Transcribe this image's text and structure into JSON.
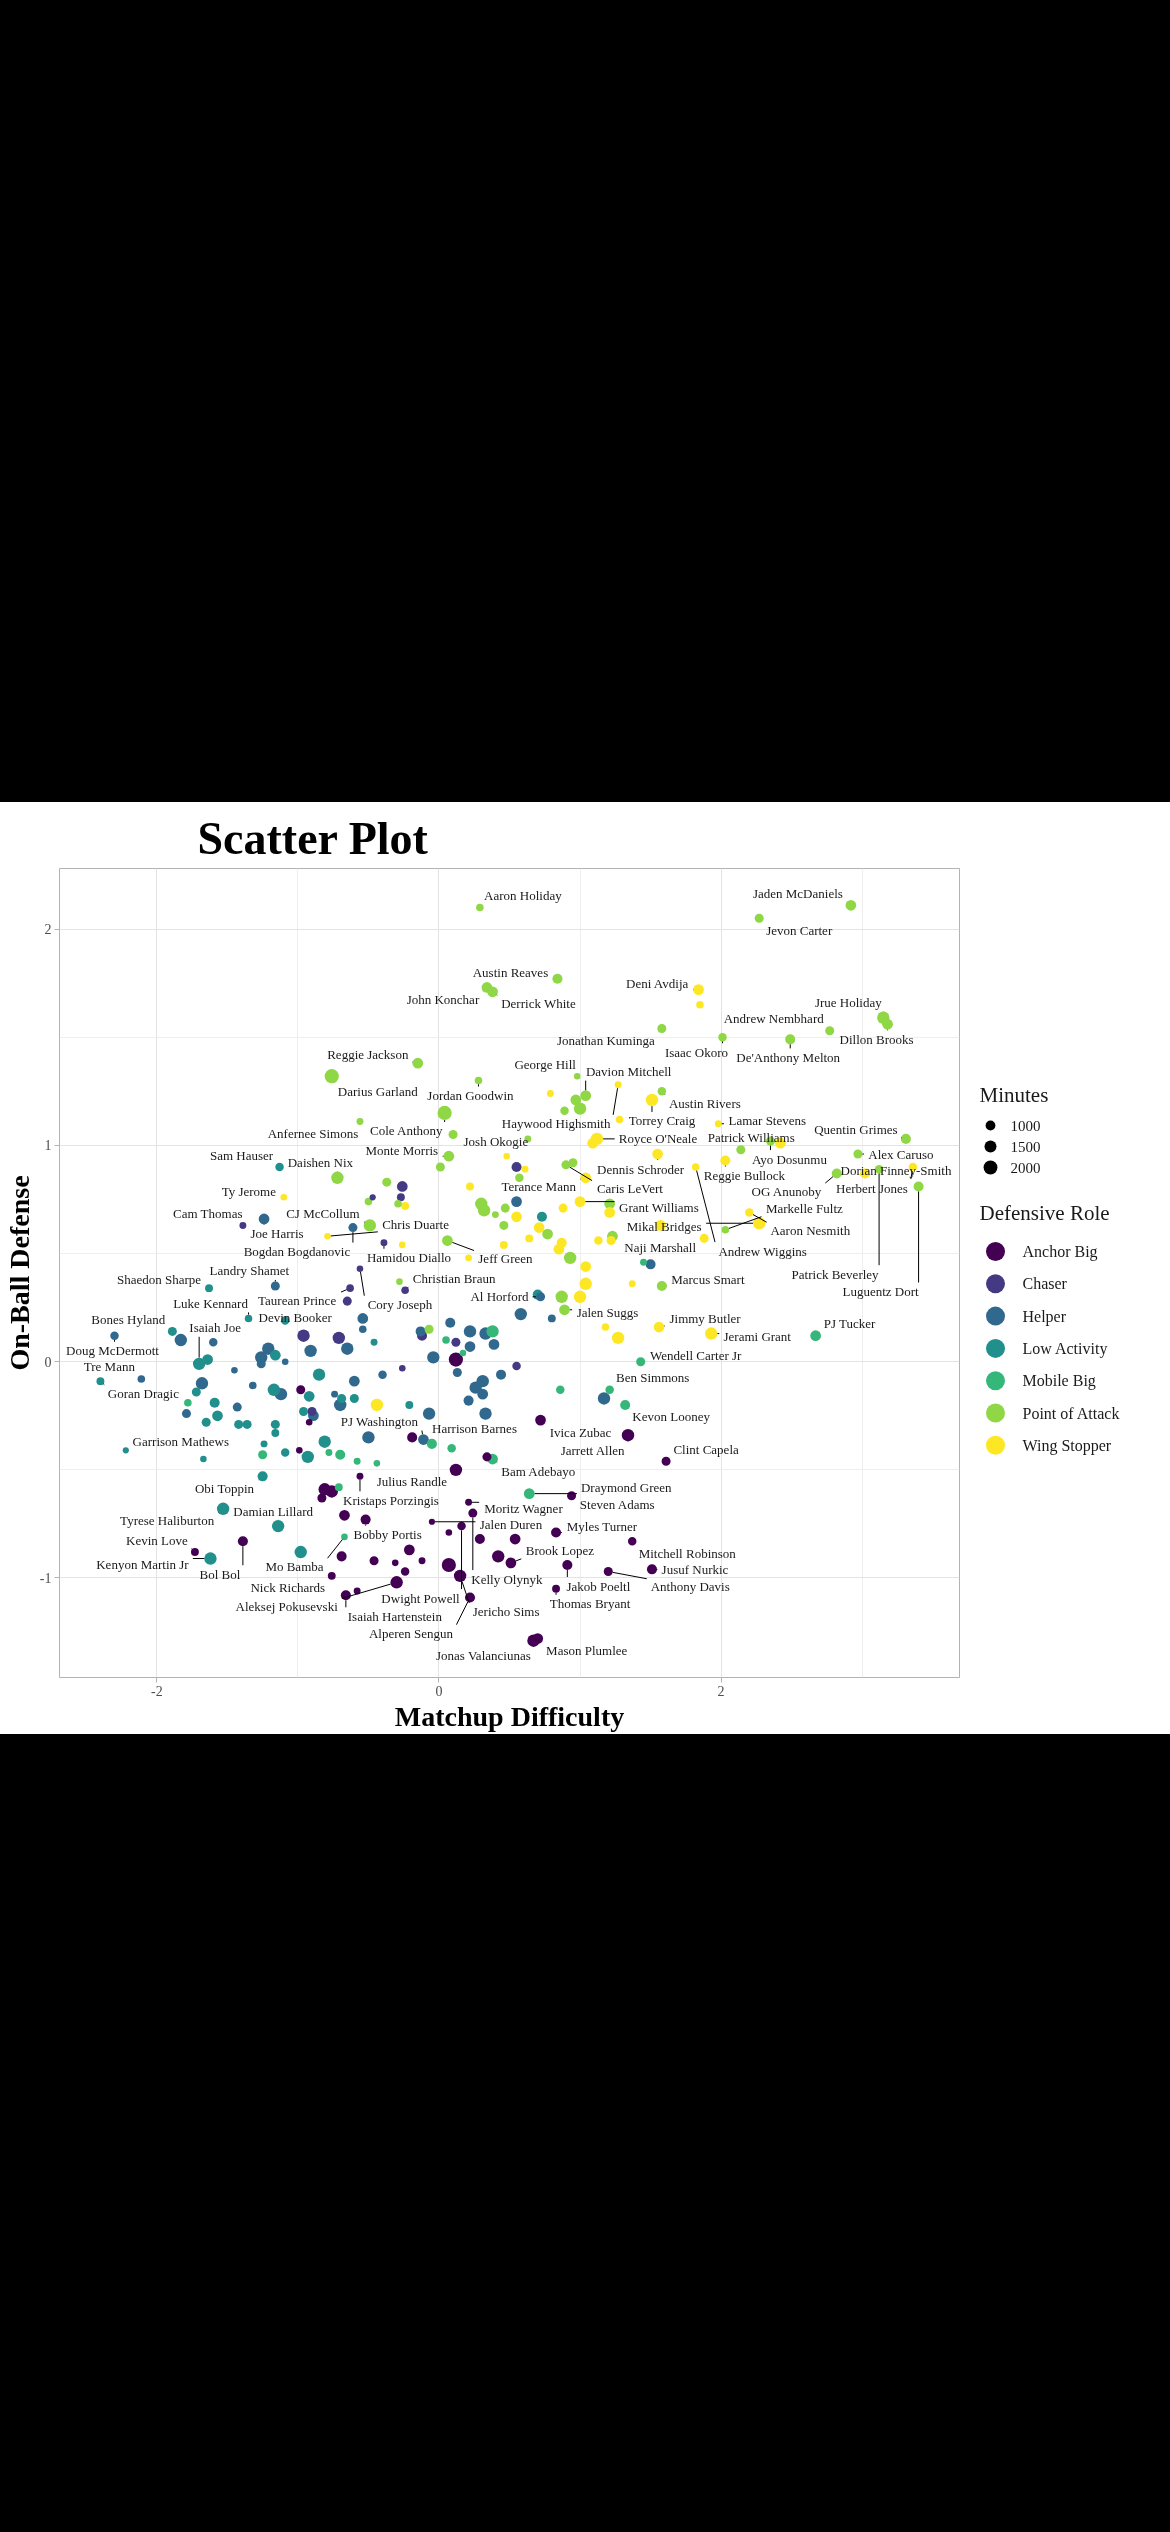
{
  "chart_data": {
    "type": "bubble",
    "title": "Scatter Plot",
    "xlabel": "Matchup Difficulty",
    "ylabel": "On-Ball Defense",
    "legend_title": "Defensive Role",
    "xlim": [
      -2.69,
      3.69
    ],
    "ylim": [
      -1.46,
      2.28
    ],
    "xticks": [
      -2,
      0,
      2
    ],
    "yticks": [
      -1,
      0,
      1,
      2
    ],
    "grid": true,
    "legend": "right",
    "marker": "circle",
    "size_legend": [
      1000,
      1500,
      2000
    ],
    "series": [
      {
        "name": "Anchor Big",
        "color": "#440154",
        "x": [
          -0.98,
          -0.92,
          -0.99,
          -0.56,
          -0.81,
          -0.76,
          -0.83,
          -0.67,
          -0.52,
          -1.39,
          -1.73,
          -0.69,
          -0.46,
          -0.76,
          -0.66,
          -0.58,
          0.12,
          0.72,
          -0.19,
          0.34,
          0.12,
          0.94,
          0.21,
          0.24,
          -0.05,
          0.16,
          0.07,
          0.29,
          0.54,
          0.83,
          1.37,
          -0.21,
          -0.31,
          -0.12,
          -0.24,
          -0.3,
          0.07,
          0.15,
          0.42,
          0.51,
          0.91,
          1.2,
          1.51,
          0.83,
          0.22,
          0.67,
          0.7,
          1.34,
          1.61
        ],
        "values": [
          -0.13,
          -0.28,
          -0.41,
          -0.53,
          -0.59,
          -0.6,
          -0.63,
          -0.71,
          -0.73,
          -0.83,
          -0.88,
          -0.9,
          -0.92,
          -0.99,
          -1.08,
          -1.06,
          0.01,
          -0.27,
          -0.35,
          -0.44,
          -0.5,
          -0.62,
          -0.65,
          -0.7,
          -0.74,
          -0.76,
          -0.79,
          -0.82,
          -0.82,
          -0.79,
          -0.83,
          -0.87,
          -0.93,
          -0.92,
          -0.97,
          -1.02,
          -0.94,
          -0.99,
          -0.9,
          -0.93,
          -0.94,
          -0.97,
          -0.96,
          -1.05,
          -1.09,
          -1.29,
          -1.28,
          -0.34,
          -0.46
        ],
        "sizes": [
          850,
          450,
          450,
          500,
          1600,
          1600,
          850,
          1200,
          1050,
          1050,
          650,
          1050,
          850,
          650,
          1050,
          500,
          2100,
          1200,
          1050,
          850,
          1600,
          850,
          500,
          850,
          400,
          750,
          450,
          1050,
          1200,
          1050,
          750,
          1200,
          450,
          500,
          750,
          1600,
          2100,
          1600,
          1600,
          1200,
          1050,
          850,
          1050,
          650,
          1050,
          1600,
          1200,
          1600,
          850
        ]
      },
      {
        "name": "Chaser",
        "color": "#443a83",
        "x": [
          -0.47,
          -1.39,
          0.55,
          -0.26,
          -0.27,
          -0.39,
          -0.56,
          -0.24,
          -0.63,
          -0.65,
          -0.96,
          -0.71,
          -0.9,
          -0.12,
          0.12,
          -0.26,
          0.55
        ],
        "values": [
          0.76,
          0.63,
          0.9,
          0.81,
          0.76,
          0.55,
          0.43,
          0.33,
          0.34,
          0.28,
          0.12,
          0.11,
          -0.23,
          0.12,
          0.09,
          -0.03,
          -0.02
        ],
        "sizes": [
          400,
          500,
          1050,
          1200,
          650,
          500,
          450,
          600,
          600,
          850,
          1600,
          1600,
          850,
          1050,
          850,
          450,
          750
        ]
      },
      {
        "name": "Helper",
        "color": "#31688e",
        "x": [
          -1.24,
          -0.61,
          0.55,
          1.5,
          -2.3,
          -1.83,
          -1.6,
          -1.16,
          -0.54,
          -0.54,
          -0.91,
          -0.65,
          -1.21,
          -1.26,
          -1.26,
          -1.09,
          -2.11,
          -1.68,
          -1.45,
          -1.32,
          -1.12,
          -0.74,
          -0.7,
          -0.6,
          -1.79,
          -1.43,
          -0.89,
          -0.5,
          -0.13,
          0.08,
          0.22,
          0.22,
          0.33,
          0.39,
          -0.04,
          0.13,
          -0.4,
          0.44,
          0.31,
          0.26,
          0.31,
          0.21,
          0.33,
          -0.07,
          -0.11,
          0.72,
          0.58,
          0.8,
          1.17
        ],
        "values": [
          0.66,
          0.62,
          0.74,
          0.45,
          0.12,
          0.1,
          0.09,
          0.35,
          0.2,
          0.15,
          0.05,
          0.06,
          0.06,
          0.02,
          -0.01,
          0.0,
          -0.08,
          -0.1,
          -0.04,
          -0.11,
          -0.15,
          -0.15,
          -0.2,
          -0.09,
          -0.24,
          -0.21,
          -0.25,
          -0.35,
          0.14,
          0.18,
          0.14,
          0.07,
          0.13,
          0.08,
          0.02,
          -0.05,
          -0.06,
          -0.06,
          -0.09,
          -0.12,
          -0.15,
          -0.18,
          -0.24,
          -0.24,
          -0.36,
          0.3,
          0.22,
          0.2,
          -0.17
        ],
        "sizes": [
          1200,
          850,
          1200,
          1050,
          750,
          1600,
          750,
          850,
          1200,
          600,
          1600,
          1600,
          1600,
          1600,
          850,
          450,
          600,
          1600,
          450,
          600,
          1600,
          500,
          1600,
          1200,
          850,
          850,
          1200,
          1600,
          1050,
          1050,
          1600,
          1200,
          1600,
          1200,
          1600,
          850,
          750,
          1050,
          1600,
          1600,
          1200,
          1050,
          1600,
          1600,
          1200,
          850,
          1600,
          650,
          1600
        ]
      },
      {
        "name": "Low Activity",
        "color": "#21908c",
        "x": [
          -1.13,
          0.73,
          -1.63,
          -1.89,
          -1.35,
          -1.09,
          -0.46,
          -1.16,
          -1.7,
          -1.64,
          -2.4,
          -1.72,
          -1.17,
          -0.92,
          -0.85,
          -0.69,
          -0.6,
          -1.59,
          -1.57,
          -1.65,
          -1.42,
          -1.36,
          -1.16,
          -1.16,
          -0.96,
          -2.22,
          -1.67,
          -1.24,
          -1.09,
          -0.93,
          -0.81,
          -1.25,
          -1.53,
          -1.14,
          -1.62,
          -0.98,
          -0.21,
          0.7
        ],
        "values": [
          0.9,
          0.67,
          0.34,
          0.14,
          0.2,
          0.19,
          0.09,
          0.03,
          -0.01,
          0.01,
          -0.09,
          -0.14,
          -0.13,
          -0.16,
          -0.06,
          -0.17,
          -0.17,
          -0.19,
          -0.25,
          -0.28,
          -0.29,
          -0.29,
          -0.29,
          -0.33,
          -0.23,
          -0.41,
          -0.45,
          -0.38,
          -0.42,
          -0.44,
          -0.37,
          -0.53,
          -0.68,
          -0.76,
          -0.91,
          -0.88,
          -0.2,
          0.31
        ],
        "sizes": [
          750,
          1050,
          650,
          850,
          600,
          750,
          500,
          1200,
          1600,
          1200,
          650,
          850,
          1600,
          1200,
          1600,
          850,
          850,
          1050,
          1200,
          850,
          850,
          850,
          850,
          650,
          850,
          400,
          450,
          500,
          750,
          1600,
          1600,
          1050,
          1600,
          1600,
          1600,
          1600,
          650,
          1050
        ]
      },
      {
        "name": "Mobile Big",
        "color": "#35b779",
        "x": [
          1.45,
          -1.78,
          -1.25,
          -0.78,
          -0.7,
          -0.58,
          -0.71,
          -0.67,
          0.05,
          0.38,
          0.17,
          -0.05,
          0.09,
          -0.44,
          0.38,
          0.64,
          0.86,
          1.21,
          1.32,
          1.43,
          2.67
        ],
        "values": [
          0.46,
          -0.19,
          -0.43,
          -0.42,
          -0.43,
          -0.46,
          -0.58,
          -0.81,
          0.1,
          0.14,
          0.04,
          -0.38,
          -0.4,
          -0.47,
          -0.45,
          -0.61,
          -0.13,
          -0.13,
          -0.2,
          0.0,
          0.12
        ],
        "sizes": [
          500,
          600,
          850,
          500,
          1050,
          500,
          650,
          450,
          600,
          1600,
          450,
          1050,
          750,
          450,
          1200,
          1200,
          750,
          750,
          1050,
          850,
          1200
        ]
      },
      {
        "name": "Point of Attack",
        "color": "#8fd744",
        "x": [
          -0.76,
          -0.56,
          -0.72,
          -0.5,
          -0.49,
          0.29,
          0.34,
          0.38,
          0.84,
          1.58,
          -0.15,
          0.28,
          0.98,
          0.97,
          1.04,
          1.0,
          0.89,
          1.58,
          0.04,
          0.1,
          0.07,
          0.01,
          0.63,
          0.57,
          0.9,
          0.95,
          -0.37,
          -0.29,
          0.3,
          0.32,
          0.4,
          0.47,
          0.46,
          0.77,
          1.21,
          1.23,
          0.06,
          0.93,
          2.92,
          2.27,
          2.01,
          2.49,
          2.77,
          3.15,
          3.18,
          2.14,
          2.35,
          2.97,
          3.31,
          2.82,
          3.12,
          3.4,
          2.03,
          -0.28,
          -0.07,
          0.87,
          0.89,
          1.58
        ],
        "values": [
          1.32,
          1.11,
          0.85,
          0.74,
          0.63,
          2.1,
          1.73,
          1.71,
          1.77,
          1.54,
          1.38,
          1.3,
          1.32,
          1.21,
          1.23,
          1.17,
          1.16,
          1.25,
          1.15,
          1.05,
          0.95,
          0.9,
          1.03,
          0.85,
          0.91,
          0.92,
          0.83,
          0.73,
          0.73,
          0.7,
          0.68,
          0.71,
          0.63,
          0.59,
          0.73,
          0.58,
          0.56,
          0.48,
          2.11,
          2.05,
          1.5,
          1.49,
          1.53,
          1.59,
          1.56,
          0.98,
          1.02,
          0.96,
          1.03,
          0.87,
          0.89,
          0.81,
          0.61,
          0.37,
          0.15,
          0.3,
          0.24,
          0.35
        ],
        "sizes": [
          2100,
          500,
          1600,
          600,
          1600,
          600,
          1200,
          1200,
          1050,
          850,
          1200,
          600,
          450,
          1200,
          1200,
          1600,
          750,
          750,
          2100,
          850,
          1200,
          850,
          500,
          750,
          850,
          850,
          850,
          600,
          1600,
          1600,
          500,
          850,
          850,
          1200,
          1200,
          1200,
          1200,
          1600,
          1200,
          850,
          750,
          1050,
          850,
          1600,
          1200,
          850,
          850,
          850,
          1050,
          1050,
          750,
          1050,
          600,
          450,
          850,
          1600,
          1200,
          1050
        ]
      },
      {
        "name": "Wing Stopper",
        "color": "#fde725",
        "x": [
          -1.1,
          -0.79,
          1.27,
          0.79,
          1.51,
          1.28,
          1.12,
          1.09,
          0.48,
          0.61,
          1.04,
          1.55,
          -0.24,
          0.22,
          0.55,
          0.71,
          0.88,
          1.0,
          1.21,
          1.57,
          1.22,
          1.13,
          0.64,
          0.46,
          0.21,
          -0.26,
          0.87,
          0.85,
          1.04,
          1.04,
          1.0,
          1.18,
          1.27,
          1.37,
          1.56,
          1.84,
          1.85,
          1.98,
          2.03,
          1.82,
          2.42,
          3.02,
          3.36,
          2.2,
          2.27,
          1.88,
          1.93,
          -0.44
        ],
        "values": [
          0.76,
          0.58,
          1.28,
          1.24,
          1.21,
          1.12,
          1.03,
          1.01,
          0.95,
          0.89,
          0.85,
          0.96,
          0.72,
          0.81,
          0.67,
          0.62,
          0.71,
          0.74,
          0.69,
          0.63,
          0.56,
          0.56,
          0.57,
          0.54,
          0.48,
          0.54,
          0.55,
          0.52,
          0.44,
          0.36,
          0.3,
          0.16,
          0.11,
          0.36,
          0.16,
          1.72,
          1.65,
          1.1,
          0.93,
          0.9,
          1.01,
          0.87,
          0.9,
          0.69,
          0.64,
          0.57,
          0.13,
          -0.2
        ],
        "sizes": [
          450,
          450,
          500,
          500,
          1600,
          600,
          1600,
          1200,
          450,
          500,
          1200,
          1200,
          650,
          650,
          1200,
          1200,
          850,
          1200,
          1200,
          1200,
          850,
          750,
          650,
          650,
          500,
          450,
          1050,
          1200,
          1200,
          1600,
          1600,
          600,
          1600,
          500,
          1200,
          1200,
          600,
          500,
          1050,
          600,
          1200,
          1050,
          750,
          750,
          1600,
          850,
          1600,
          1600
        ]
      }
    ],
    "annotations": [
      "Minutes",
      {
        "text": "Aaron Holiday",
        "x": 0.29,
        "y": 2.1
      },
      {
        "text": "Jaden McDaniels",
        "x": 2.92,
        "y": 2.11
      },
      {
        "text": "Jevon Carter",
        "x": 2.27,
        "y": 2.05
      },
      {
        "text": "Austin Reaves",
        "x": 0.84,
        "y": 1.77
      },
      {
        "text": "John Konchar",
        "x": 0.34,
        "y": 1.73
      },
      {
        "text": "Derrick White",
        "x": 0.38,
        "y": 1.71
      },
      {
        "text": "Deni Avdija",
        "x": 1.84,
        "y": 1.72
      },
      {
        "text": "Jrue Holiday",
        "x": 3.15,
        "y": 1.59
      },
      {
        "text": "Jonathan Kuminga",
        "x": 1.58,
        "y": 1.54
      },
      {
        "text": "Andrew Nembhard",
        "x": 2.77,
        "y": 1.53
      },
      {
        "text": "Dillon Brooks",
        "x": 3.18,
        "y": 1.56
      },
      {
        "text": "Isaac Okoro",
        "x": 2.01,
        "y": 1.5
      },
      {
        "text": "De'Anthony Melton",
        "x": 2.49,
        "y": 1.49
      },
      {
        "text": "Davion Mitchell",
        "x": 1.04,
        "y": 1.23
      },
      {
        "text": "Reggie Jackson",
        "x": -0.15,
        "y": 1.38
      },
      {
        "text": "George Hill",
        "x": 0.98,
        "y": 1.32
      },
      {
        "text": "Haywood Highsmith",
        "x": 1.27,
        "y": 1.28
      },
      {
        "text": "Darius Garland",
        "x": -0.76,
        "y": 1.32
      },
      {
        "text": "Austin Rivers",
        "x": 1.58,
        "y": 1.25
      },
      {
        "text": "Jordan Goodwin",
        "x": 0.28,
        "y": 1.3
      },
      {
        "text": "Torrey Craig",
        "x": 1.51,
        "y": 1.21
      },
      {
        "text": "Lamar Stevens",
        "x": 1.98,
        "y": 1.1
      },
      {
        "text": "Anfernee Simons",
        "x": -0.56,
        "y": 1.11
      },
      {
        "text": "Ayo Dosunmu",
        "x": 2.35,
        "y": 1.02
      },
      {
        "text": "Quentin Grimes",
        "x": 3.31,
        "y": 1.03
      },
      {
        "text": "Cole Anthony",
        "x": 0.04,
        "y": 1.15
      },
      {
        "text": "Josh Okogie",
        "x": 0.63,
        "y": 1.03
      },
      {
        "text": "Royce O'Neale",
        "x": 1.12,
        "y": 1.03
      },
      {
        "text": "Dennis Schroder",
        "x": 1.55,
        "y": 0.96
      },
      {
        "text": "Daishen Nix",
        "x": -0.72,
        "y": 0.85
      },
      {
        "text": "Monte Morris",
        "x": 0.07,
        "y": 0.95
      },
      {
        "text": "Caris LeVert",
        "x": 0.9,
        "y": 0.91
      },
      {
        "text": "Alex Caruso",
        "x": 2.97,
        "y": 0.96
      },
      {
        "text": "Sam Hauser",
        "x": -1.13,
        "y": 0.9
      },
      {
        "text": "Terance Mann",
        "x": 1.04,
        "y": 0.85
      },
      {
        "text": "Reggie Bullock",
        "x": 2.03,
        "y": 0.93
      },
      {
        "text": "Patrick Williams",
        "x": 2.42,
        "y": 1.01
      },
      {
        "text": "Herbert Jones",
        "x": 3.36,
        "y": 0.9
      },
      {
        "text": "Ty Jerome",
        "x": -1.1,
        "y": 0.76
      },
      {
        "text": "Grant Williams",
        "x": 1.0,
        "y": 0.74
      },
      {
        "text": "Andrew Wiggins",
        "x": 1.82,
        "y": 0.9
      },
      {
        "text": "OG Anunoby",
        "x": 2.82,
        "y": 0.87
      },
      {
        "text": "Joe Harris",
        "x": -1.24,
        "y": 0.66
      },
      {
        "text": "Bogdan Bogdanovic",
        "x": -0.61,
        "y": 0.62
      },
      {
        "text": "CJ McCollum",
        "x": -0.49,
        "y": 0.63
      },
      {
        "text": "Markelle Fultz",
        "x": 2.03,
        "y": 0.61
      },
      {
        "text": "Aaron Nesmith",
        "x": 2.2,
        "y": 0.69
      },
      {
        "text": "Patrick Beverley",
        "x": 3.12,
        "y": 0.89
      },
      {
        "text": "Cam Thomas",
        "x": -1.39,
        "y": 0.63
      },
      {
        "text": "Chris Duarte",
        "x": -0.79,
        "y": 0.58
      },
      {
        "text": "Hamidou Diallo",
        "x": -0.39,
        "y": 0.55
      },
      {
        "text": "Dorian Finney-Smith",
        "x": 3.02,
        "y": 0.87
      },
      {
        "text": "Luguentz Dort",
        "x": 3.4,
        "y": 0.81
      },
      {
        "text": "Jeff Green",
        "x": 0.06,
        "y": 0.56
      },
      {
        "text": "Naji Marshall",
        "x": 1.88,
        "y": 0.57
      },
      {
        "text": "Mikal Bridges",
        "x": 2.27,
        "y": 0.64
      },
      {
        "text": "Shaedon Sharpe",
        "x": -1.63,
        "y": 0.34
      },
      {
        "text": "Landry Shamet",
        "x": -1.16,
        "y": 0.35
      },
      {
        "text": "Cory Joseph",
        "x": -0.56,
        "y": 0.43
      },
      {
        "text": "Bones Hyland",
        "x": -1.89,
        "y": 0.14
      },
      {
        "text": "Taurean Prince",
        "x": -0.63,
        "y": 0.34
      },
      {
        "text": "Marcus Smart",
        "x": 1.58,
        "y": 0.35
      },
      {
        "text": "Christian Braun",
        "x": -0.24,
        "y": 0.33
      },
      {
        "text": "Al Horford",
        "x": 0.72,
        "y": 0.3
      },
      {
        "text": "Luke Kennard",
        "x": -1.35,
        "y": 0.2
      },
      {
        "text": "Devin Booker",
        "x": -1.09,
        "y": 0.19
      },
      {
        "text": "Jimmy Butler",
        "x": 1.56,
        "y": 0.16
      },
      {
        "text": "Doug McDermott",
        "x": -2.3,
        "y": 0.12
      },
      {
        "text": "Jalen Suggs",
        "x": 0.89,
        "y": 0.24
      },
      {
        "text": "PJ Tucker",
        "x": 2.67,
        "y": 0.12
      },
      {
        "text": "Tre Mann",
        "x": -2.11,
        "y": -0.08
      },
      {
        "text": "Wendell Carter Jr",
        "x": 1.43,
        "y": 0.0
      },
      {
        "text": "Jerami Grant",
        "x": 1.93,
        "y": 0.13
      },
      {
        "text": "Isaiah Joe",
        "x": -1.7,
        "y": -0.01
      },
      {
        "text": "Ben Simmons",
        "x": 1.21,
        "y": -0.13
      },
      {
        "text": "Goran Dragic",
        "x": -2.4,
        "y": -0.09
      },
      {
        "text": "Harrison Barnes",
        "x": 0.33,
        "y": -0.24
      },
      {
        "text": "Kevon Looney",
        "x": 1.32,
        "y": -0.2
      },
      {
        "text": "PJ Washington",
        "x": -0.11,
        "y": -0.36
      },
      {
        "text": "Ivica Zubac",
        "x": 0.72,
        "y": -0.27
      },
      {
        "text": "Garrison Mathews",
        "x": -2.22,
        "y": -0.41
      },
      {
        "text": "Jarrett Allen",
        "x": 1.34,
        "y": -0.34
      },
      {
        "text": "Julius Randle",
        "x": 0.12,
        "y": -0.5
      },
      {
        "text": "Bam Adebayo",
        "x": 0.38,
        "y": -0.45
      },
      {
        "text": "Clint Capela",
        "x": 1.61,
        "y": -0.46
      },
      {
        "text": "Obi Toppin",
        "x": -1.25,
        "y": -0.53
      },
      {
        "text": "Kristaps Porzingis",
        "x": -0.56,
        "y": -0.53
      },
      {
        "text": "Moritz Wagner",
        "x": 0.21,
        "y": -0.65
      },
      {
        "text": "Draymond Green",
        "x": 0.64,
        "y": -0.61
      },
      {
        "text": "Tyrese Haliburton",
        "x": -1.53,
        "y": -0.68
      },
      {
        "text": "Bobby Portis",
        "x": -0.52,
        "y": -0.73
      },
      {
        "text": "Jalen Duren",
        "x": -0.05,
        "y": -0.74
      },
      {
        "text": "Kelly Olynyk",
        "x": 0.24,
        "y": -0.7
      },
      {
        "text": "Steven Adams",
        "x": 0.94,
        "y": -0.62
      },
      {
        "text": "Damian Lillard",
        "x": -1.14,
        "y": -0.76
      },
      {
        "text": "Dwight Powell",
        "x": 0.16,
        "y": -0.76
      },
      {
        "text": "Myles Turner",
        "x": 0.83,
        "y": -0.79
      },
      {
        "text": "Mitchell Robinson",
        "x": 1.37,
        "y": -0.83
      },
      {
        "text": "Mo Bamba",
        "x": -0.67,
        "y": -0.81
      },
      {
        "text": "Kevin Love",
        "x": -1.73,
        "y": -0.88
      },
      {
        "text": "Brook Lopez",
        "x": 0.51,
        "y": -0.93
      },
      {
        "text": "Jakob Poeltl",
        "x": 0.91,
        "y": -0.94
      },
      {
        "text": "Jusuf Nurkic",
        "x": 1.51,
        "y": -0.96
      },
      {
        "text": "Bol Bol",
        "x": -1.39,
        "y": -0.83
      },
      {
        "text": "Jericho Sims",
        "x": 0.15,
        "y": -0.99
      },
      {
        "text": "Anthony Davis",
        "x": 1.2,
        "y": -0.97
      },
      {
        "text": "Kenyon Martin Jr",
        "x": -1.62,
        "y": -0.91
      },
      {
        "text": "Aleksej Pokusevski",
        "x": -0.3,
        "y": -1.02
      },
      {
        "text": "Nick Richards",
        "x": -0.76,
        "y": -0.99
      },
      {
        "text": "Thomas Bryant",
        "x": 0.83,
        "y": -1.05
      },
      {
        "text": "Isaiah Hartenstein",
        "x": -0.66,
        "y": -1.08
      },
      {
        "text": "Alperen Sengun",
        "x": 0.22,
        "y": -1.09
      },
      {
        "text": "Jonas Valanciunas",
        "x": 0.67,
        "y": -1.29
      },
      {
        "text": "Mason Plumlee",
        "x": 0.7,
        "y": -1.28
      }
    ]
  }
}
